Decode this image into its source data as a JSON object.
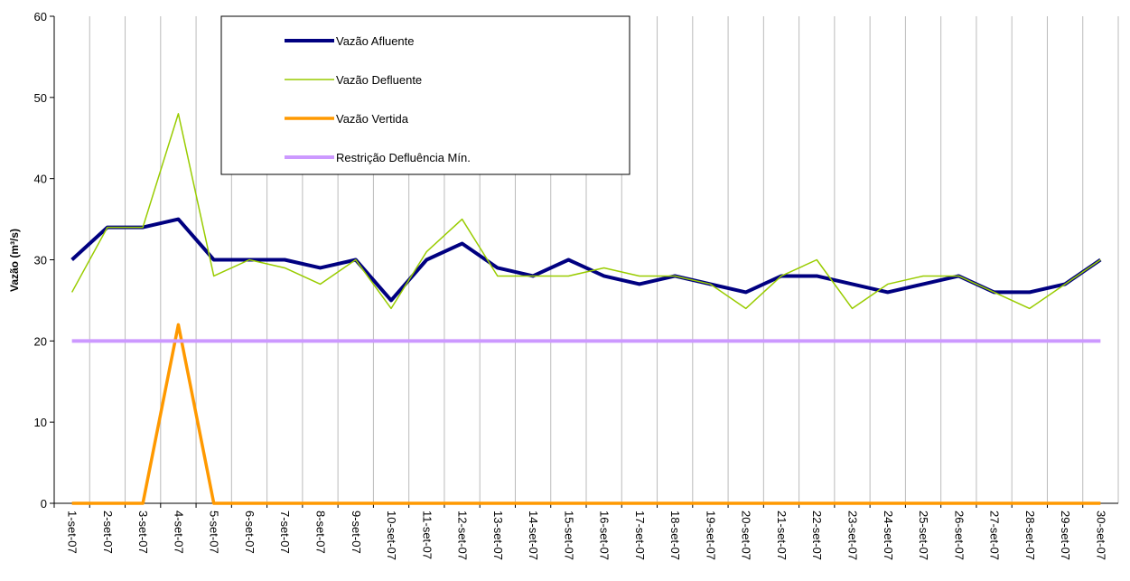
{
  "chart_data": {
    "type": "line",
    "y_label": "Vazão (m³/s)",
    "categories": [
      "1-set-07",
      "2-set-07",
      "3-set-07",
      "4-set-07",
      "5-set-07",
      "6-set-07",
      "7-set-07",
      "8-set-07",
      "9-set-07",
      "10-set-07",
      "11-set-07",
      "12-set-07",
      "13-set-07",
      "14-set-07",
      "15-set-07",
      "16-set-07",
      "17-set-07",
      "18-set-07",
      "19-set-07",
      "20-set-07",
      "21-set-07",
      "22-set-07",
      "23-set-07",
      "24-set-07",
      "25-set-07",
      "26-set-07",
      "27-set-07",
      "28-set-07",
      "29-set-07",
      "30-set-07"
    ],
    "series": [
      {
        "name": "Vazão Afluente",
        "color": "#000080",
        "width": 4,
        "values": [
          30,
          34,
          34,
          35,
          30,
          30,
          30,
          29,
          30,
          25,
          30,
          32,
          29,
          28,
          30,
          28,
          27,
          28,
          27,
          26,
          28,
          28,
          27,
          26,
          27,
          28,
          26,
          26,
          27,
          30
        ]
      },
      {
        "name": "Vazão Defluente",
        "color": "#99cc00",
        "width": 1.5,
        "values": [
          26,
          34,
          34,
          48,
          28,
          30,
          29,
          27,
          30,
          24,
          31,
          35,
          28,
          28,
          28,
          29,
          28,
          28,
          27,
          24,
          28,
          30,
          24,
          27,
          28,
          28,
          26,
          24,
          27,
          30
        ]
      },
      {
        "name": "Vazão Vertida",
        "color": "#ff9900",
        "width": 3.5,
        "values": [
          0,
          0,
          0,
          22,
          0,
          0,
          0,
          0,
          0,
          0,
          0,
          0,
          0,
          0,
          0,
          0,
          0,
          0,
          0,
          0,
          0,
          0,
          0,
          0,
          0,
          0,
          0,
          0,
          0,
          0
        ]
      },
      {
        "name": "Restrição Defluência Mín.",
        "color": "#cc99ff",
        "width": 4,
        "values": [
          20,
          20,
          20,
          20,
          20,
          20,
          20,
          20,
          20,
          20,
          20,
          20,
          20,
          20,
          20,
          20,
          20,
          20,
          20,
          20,
          20,
          20,
          20,
          20,
          20,
          20,
          20,
          20,
          20,
          20
        ]
      }
    ],
    "ylim": [
      0,
      60
    ],
    "yticks": [
      0,
      10,
      20,
      30,
      40,
      50,
      60
    ],
    "vertical_grid": true,
    "legend": "top"
  }
}
